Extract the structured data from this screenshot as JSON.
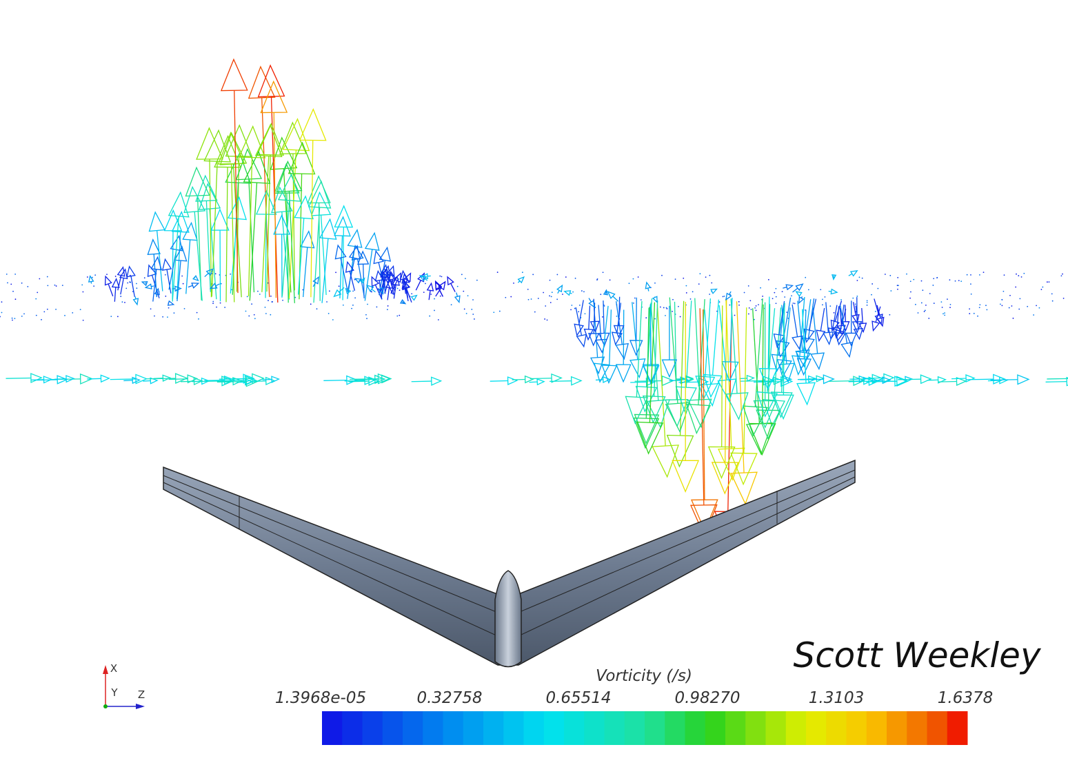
{
  "author": "Scott Weekley",
  "colorbar": {
    "title": "Vorticity (/s)",
    "ticks": [
      "1.3968e-05",
      "0.32758",
      "0.65514",
      "0.98270",
      "1.3103",
      "1.6378"
    ]
  },
  "axes": {
    "x": "X",
    "y": "Y",
    "z": "Z"
  }
}
